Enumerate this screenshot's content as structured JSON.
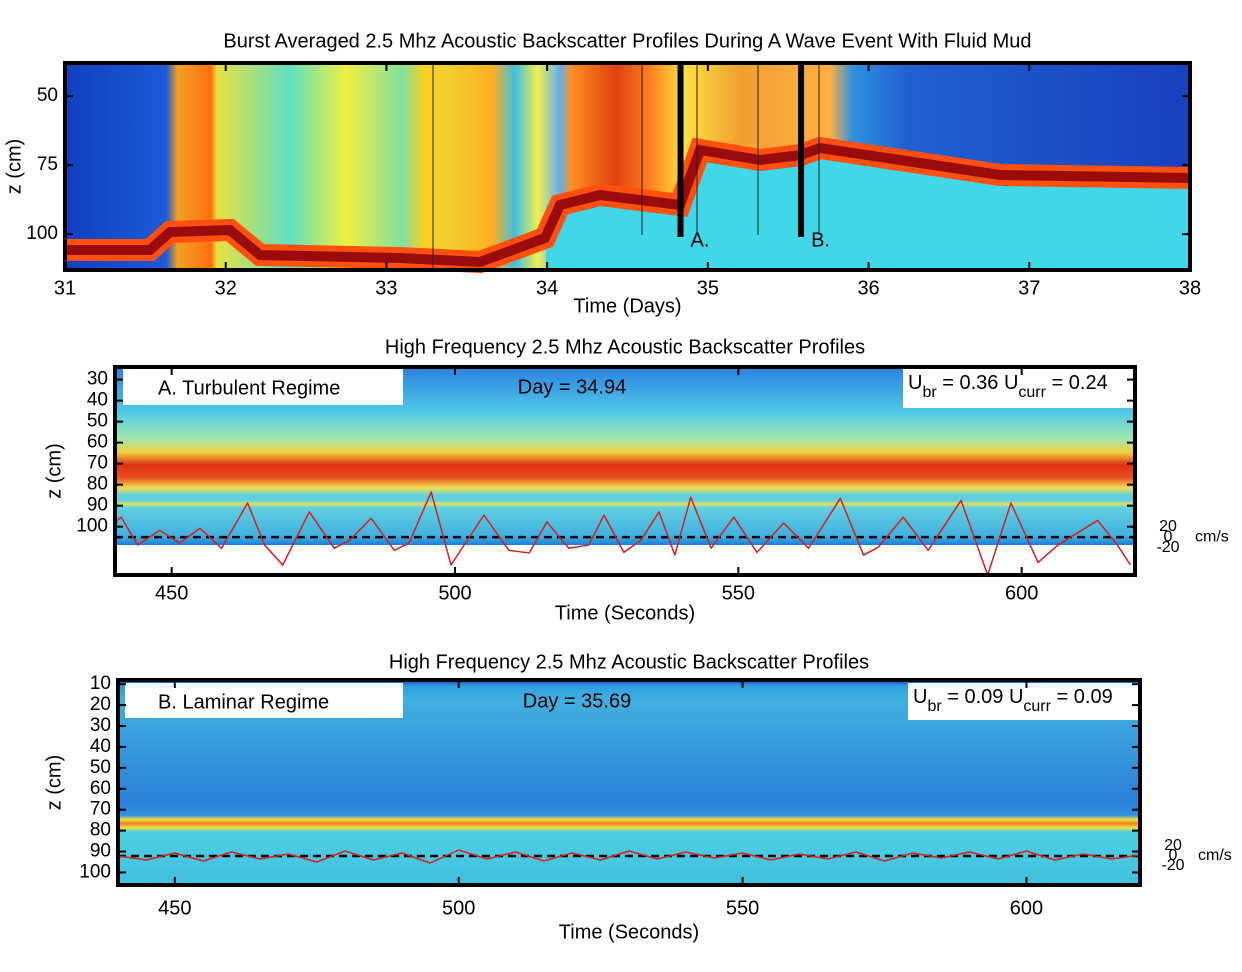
{
  "chart_data": [
    {
      "type": "heatmap",
      "title": "Burst Averaged 2.5 Mhz Acoustic Backscatter Profiles During A Wave Event With Fluid Mud",
      "x_label": "Time (Days)",
      "y_label": "z (cm)",
      "xlim": [
        31,
        38
      ],
      "xticks": [
        31,
        32,
        33,
        34,
        35,
        36,
        37,
        38
      ],
      "ylim": [
        113,
        38
      ],
      "yticks": [
        50,
        75,
        100
      ],
      "markers": [
        {
          "x": 34.83,
          "label": "A."
        },
        {
          "x": 35.58,
          "label": "B."
        }
      ]
    },
    {
      "type": "heatmap",
      "title": "High Frequency 2.5 Mhz Acoustic Backscatter Profiles",
      "x_label": "Time (Seconds)",
      "y_label": "z (cm)",
      "y2_label": "cm/s",
      "regime": "A. Turbulent Regime",
      "day": "Day = 34.94",
      "velocity_note": [
        "U",
        "br",
        " = 0.36 U",
        "curr",
        " = 0.24"
      ],
      "xlim": [
        440,
        620
      ],
      "xticks": [
        450,
        500,
        550,
        600
      ],
      "ylim": [
        123,
        24
      ],
      "yticks": [
        30,
        40,
        50,
        60,
        70,
        80,
        90,
        100
      ],
      "y2lim": [
        -72,
        324
      ],
      "y2ticks": [
        -20,
        0,
        20
      ],
      "series": [
        {
          "color": "#d81e1e",
          "axis": "y2",
          "x": [
            440.0,
            441.1,
            444.0,
            447.9,
            451.4,
            455.0,
            458.8,
            463.4,
            466.4,
            469.6,
            474.3,
            478.7,
            481.4,
            485.2,
            489.3,
            491.9,
            495.8,
            499.3,
            505.1,
            509.5,
            513.1,
            516.2,
            520.1,
            523.6,
            526.3,
            529.8,
            532.8,
            536.0,
            538.8,
            541.6,
            545.2,
            549.2,
            553.3,
            558.0,
            562.4,
            568.0,
            572.1,
            574.7,
            579.1,
            583.5,
            589.3,
            594.0,
            598.1,
            602.9,
            606.4,
            613.4,
            616.9,
            619.2
          ],
          "values": [
            29,
            38,
            -15,
            13,
            -11,
            17,
            -21,
            65,
            -15,
            -53,
            48,
            -21,
            -6,
            36,
            -25,
            -11,
            86,
            -53,
            42,
            -25,
            -30,
            29,
            -21,
            -15,
            42,
            -29,
            -6,
            48,
            -34,
            76,
            -21,
            38,
            -29,
            27,
            -21,
            74,
            -34,
            -19,
            38,
            -25,
            70,
            -72,
            65,
            -48,
            -15,
            32,
            -15,
            -53
          ]
        }
      ]
    },
    {
      "type": "heatmap",
      "title": "High Frequency 2.5 Mhz Acoustic Backscatter Profiles",
      "x_label": "Time (Seconds)",
      "y_label": "z (cm)",
      "y2_label": "cm/s",
      "regime": "B. Laminar Regime",
      "day": "Day = 35.69",
      "velocity_note": [
        "U",
        "br",
        " = 0.09 U",
        "curr",
        " = 0.09"
      ],
      "xlim": [
        440,
        620
      ],
      "xticks": [
        450,
        500,
        550,
        600
      ],
      "ylim": [
        106,
        8
      ],
      "yticks": [
        10,
        20,
        30,
        40,
        50,
        60,
        70,
        80,
        90,
        100
      ],
      "y2lim": [
        -58,
        352
      ],
      "y2ticks": [
        -20,
        0,
        20
      ],
      "series": [
        {
          "color": "#d81e1e",
          "axis": "y2",
          "x": [
            440,
            445,
            450,
            455,
            460,
            465,
            470,
            475,
            480,
            485,
            490,
            495,
            500,
            505,
            510,
            515,
            520,
            525,
            530,
            535,
            540,
            545,
            550,
            555,
            560,
            565,
            570,
            575,
            580,
            585,
            590,
            595,
            600,
            605,
            610,
            615,
            620
          ],
          "values": [
            0,
            -8,
            6,
            -10,
            8,
            -6,
            4,
            -12,
            10,
            -8,
            6,
            -14,
            12,
            -6,
            8,
            -10,
            6,
            -8,
            10,
            -6,
            8,
            -4,
            6,
            -8,
            4,
            -6,
            8,
            -10,
            6,
            -4,
            8,
            -6,
            10,
            -8,
            4,
            -6,
            2
          ]
        }
      ]
    }
  ]
}
